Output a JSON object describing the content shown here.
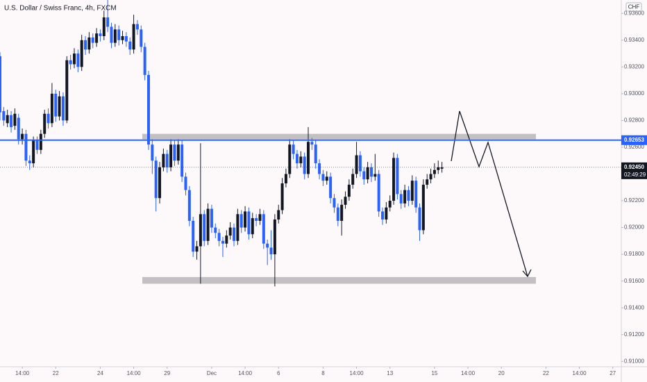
{
  "chart_data": {
    "type": "candlestick",
    "title": "U.S. Dollar / Swiss Franc, 4h, FXCM",
    "currency": "CHF",
    "up_color": "#131722",
    "down_color": "#2962ff",
    "grid": false,
    "ylim": [
      0.9096,
      0.937
    ],
    "yticks": [
      {
        "value": 0.936,
        "label": "0.93600"
      },
      {
        "value": 0.934,
        "label": "0.93400"
      },
      {
        "value": 0.932,
        "label": "0.93200"
      },
      {
        "value": 0.93,
        "label": "0.93000"
      },
      {
        "value": 0.928,
        "label": "0.92800"
      },
      {
        "value": 0.926,
        "label": "0.92600"
      },
      {
        "value": 0.922,
        "label": "0.92200"
      },
      {
        "value": 0.92,
        "label": "0.92000"
      },
      {
        "value": 0.918,
        "label": "0.91800"
      },
      {
        "value": 0.916,
        "label": "0.91600"
      },
      {
        "value": 0.914,
        "label": "0.91400"
      },
      {
        "value": 0.912,
        "label": "0.91200"
      },
      {
        "value": 0.91,
        "label": "0.91000"
      }
    ],
    "xlim": [
      0,
      167.3
    ],
    "xticks": [
      {
        "value": 6,
        "label": "14:00"
      },
      {
        "value": 15,
        "label": "22"
      },
      {
        "value": 27,
        "label": "24"
      },
      {
        "value": 36,
        "label": "14:00"
      },
      {
        "value": 45,
        "label": "29"
      },
      {
        "value": 57,
        "label": "Dec"
      },
      {
        "value": 66,
        "label": "14:00"
      },
      {
        "value": 75,
        "label": "6"
      },
      {
        "value": 87,
        "label": "8"
      },
      {
        "value": 96,
        "label": "14:00"
      },
      {
        "value": 105,
        "label": "13"
      },
      {
        "value": 117,
        "label": "15"
      },
      {
        "value": 126,
        "label": "14:00"
      },
      {
        "value": 135,
        "label": "20"
      },
      {
        "value": 147,
        "label": "22"
      },
      {
        "value": 156,
        "label": "14:00"
      },
      {
        "value": 165,
        "label": "27"
      }
    ],
    "zones": [
      {
        "low": 0.9266,
        "high": 0.927
      },
      {
        "low": 0.9158,
        "high": 0.9163
      }
    ],
    "price_line": {
      "value": 0.92653,
      "color": "#2962ff"
    },
    "last_price": {
      "value": 0.9245,
      "label": "0.92450"
    },
    "countdown": "02:49:29",
    "ohlc": [
      [
        0.9328,
        0.9331,
        0.928,
        0.9286
      ],
      [
        0.9287,
        0.929,
        0.9276,
        0.928
      ],
      [
        0.9278,
        0.9288,
        0.9275,
        0.9284
      ],
      [
        0.9284,
        0.9287,
        0.9271,
        0.9275
      ],
      [
        0.9276,
        0.9289,
        0.9273,
        0.9285
      ],
      [
        0.9282,
        0.9285,
        0.9262,
        0.9266
      ],
      [
        0.9266,
        0.9274,
        0.9262,
        0.927
      ],
      [
        0.927,
        0.9273,
        0.9246,
        0.925
      ],
      [
        0.925,
        0.9254,
        0.9243,
        0.9248
      ],
      [
        0.9248,
        0.9268,
        0.9245,
        0.9265
      ],
      [
        0.9265,
        0.9268,
        0.9255,
        0.9258
      ],
      [
        0.9258,
        0.9273,
        0.9255,
        0.927
      ],
      [
        0.927,
        0.9288,
        0.9267,
        0.9285
      ],
      [
        0.9285,
        0.9289,
        0.9274,
        0.9278
      ],
      [
        0.9278,
        0.9308,
        0.9275,
        0.93
      ],
      [
        0.93,
        0.9303,
        0.9279,
        0.9283
      ],
      [
        0.9283,
        0.9302,
        0.928,
        0.9298
      ],
      [
        0.9298,
        0.9301,
        0.9276,
        0.928
      ],
      [
        0.928,
        0.9328,
        0.9278,
        0.9325
      ],
      [
        0.9325,
        0.9329,
        0.9318,
        0.9322
      ],
      [
        0.9322,
        0.9334,
        0.9319,
        0.933
      ],
      [
        0.933,
        0.9333,
        0.9316,
        0.932
      ],
      [
        0.932,
        0.9344,
        0.9317,
        0.934
      ],
      [
        0.934,
        0.9343,
        0.9329,
        0.9333
      ],
      [
        0.9333,
        0.9346,
        0.933,
        0.9342
      ],
      [
        0.9342,
        0.9345,
        0.9334,
        0.9338
      ],
      [
        0.9338,
        0.9349,
        0.9335,
        0.9345
      ],
      [
        0.9345,
        0.9348,
        0.9339,
        0.9343
      ],
      [
        0.9343,
        0.9362,
        0.934,
        0.9357
      ],
      [
        0.9357,
        0.937,
        0.9346,
        0.935
      ],
      [
        0.935,
        0.9353,
        0.9334,
        0.9338
      ],
      [
        0.9338,
        0.9352,
        0.9335,
        0.9348
      ],
      [
        0.9348,
        0.9351,
        0.9336,
        0.934
      ],
      [
        0.934,
        0.9347,
        0.9337,
        0.9343
      ],
      [
        0.9343,
        0.9346,
        0.9335,
        0.9339
      ],
      [
        0.9339,
        0.9342,
        0.9329,
        0.9333
      ],
      [
        0.9333,
        0.9359,
        0.933,
        0.9352
      ],
      [
        0.9352,
        0.9355,
        0.9344,
        0.9348
      ],
      [
        0.9348,
        0.9351,
        0.9331,
        0.9335
      ],
      [
        0.9335,
        0.9338,
        0.931,
        0.9314
      ],
      [
        0.9314,
        0.9317,
        0.9258,
        0.9262
      ],
      [
        0.9262,
        0.9266,
        0.924,
        0.925
      ],
      [
        0.925,
        0.9253,
        0.9212,
        0.9222
      ],
      [
        0.9222,
        0.9249,
        0.9218,
        0.9245
      ],
      [
        0.9245,
        0.9259,
        0.9242,
        0.9255
      ],
      [
        0.9255,
        0.9258,
        0.9241,
        0.9245
      ],
      [
        0.9245,
        0.9266,
        0.9242,
        0.9262
      ],
      [
        0.9262,
        0.9265,
        0.9246,
        0.925
      ],
      [
        0.925,
        0.9266,
        0.9247,
        0.9262
      ],
      [
        0.9262,
        0.9265,
        0.9234,
        0.9238
      ],
      [
        0.9238,
        0.9241,
        0.9224,
        0.9228
      ],
      [
        0.9228,
        0.9231,
        0.9201,
        0.9205
      ],
      [
        0.9205,
        0.9208,
        0.9178,
        0.9182
      ],
      [
        0.9182,
        0.919,
        0.9176,
        0.9186
      ],
      [
        0.9186,
        0.9263,
        0.9158,
        0.921
      ],
      [
        0.921,
        0.9213,
        0.9186,
        0.919
      ],
      [
        0.919,
        0.9218,
        0.9187,
        0.9214
      ],
      [
        0.9214,
        0.9217,
        0.9196,
        0.92
      ],
      [
        0.92,
        0.9203,
        0.9192,
        0.9196
      ],
      [
        0.9196,
        0.9199,
        0.9186,
        0.919
      ],
      [
        0.919,
        0.9193,
        0.9178,
        0.9188
      ],
      [
        0.9188,
        0.9198,
        0.9185,
        0.9194
      ],
      [
        0.9194,
        0.9204,
        0.9191,
        0.92
      ],
      [
        0.92,
        0.9203,
        0.9186,
        0.919
      ],
      [
        0.919,
        0.9214,
        0.9187,
        0.921
      ],
      [
        0.921,
        0.9213,
        0.9196,
        0.92
      ],
      [
        0.92,
        0.9216,
        0.9197,
        0.9212
      ],
      [
        0.9212,
        0.9215,
        0.9191,
        0.9195
      ],
      [
        0.9195,
        0.9211,
        0.9192,
        0.9207
      ],
      [
        0.9207,
        0.921,
        0.9201,
        0.9205
      ],
      [
        0.9205,
        0.9214,
        0.9202,
        0.921
      ],
      [
        0.921,
        0.9213,
        0.9184,
        0.9188
      ],
      [
        0.9188,
        0.9191,
        0.9172,
        0.9185
      ],
      [
        0.9185,
        0.9198,
        0.9176,
        0.918
      ],
      [
        0.918,
        0.921,
        0.9156,
        0.9206
      ],
      [
        0.9206,
        0.9217,
        0.9203,
        0.9213
      ],
      [
        0.9213,
        0.9237,
        0.921,
        0.9233
      ],
      [
        0.9233,
        0.9244,
        0.923,
        0.924
      ],
      [
        0.924,
        0.9266,
        0.9237,
        0.9262
      ],
      [
        0.9262,
        0.9265,
        0.9251,
        0.9255
      ],
      [
        0.9255,
        0.9258,
        0.9244,
        0.9248
      ],
      [
        0.9248,
        0.9257,
        0.9245,
        0.9253
      ],
      [
        0.9253,
        0.9256,
        0.9236,
        0.924
      ],
      [
        0.924,
        0.9275,
        0.9237,
        0.9264
      ],
      [
        0.9264,
        0.9267,
        0.9258,
        0.9262
      ],
      [
        0.9262,
        0.9265,
        0.9244,
        0.9248
      ],
      [
        0.9248,
        0.9251,
        0.9236,
        0.924
      ],
      [
        0.924,
        0.9243,
        0.9231,
        0.9235
      ],
      [
        0.9235,
        0.9242,
        0.9232,
        0.9238
      ],
      [
        0.9238,
        0.9241,
        0.9218,
        0.9222
      ],
      [
        0.9222,
        0.9225,
        0.9211,
        0.9215
      ],
      [
        0.9215,
        0.9218,
        0.9201,
        0.9205
      ],
      [
        0.9205,
        0.9221,
        0.9194,
        0.9217
      ],
      [
        0.9217,
        0.9227,
        0.9214,
        0.9223
      ],
      [
        0.9223,
        0.9236,
        0.922,
        0.9232
      ],
      [
        0.9232,
        0.9244,
        0.9229,
        0.924
      ],
      [
        0.924,
        0.9264,
        0.9237,
        0.9254
      ],
      [
        0.9254,
        0.9257,
        0.9238,
        0.9242
      ],
      [
        0.9242,
        0.9245,
        0.9232,
        0.9236
      ],
      [
        0.9236,
        0.9249,
        0.9233,
        0.9245
      ],
      [
        0.9245,
        0.9248,
        0.9234,
        0.9238
      ],
      [
        0.9238,
        0.9255,
        0.9235,
        0.924
      ],
      [
        0.924,
        0.9243,
        0.9208,
        0.9212
      ],
      [
        0.9212,
        0.9215,
        0.9202,
        0.9206
      ],
      [
        0.9206,
        0.9219,
        0.9203,
        0.9215
      ],
      [
        0.9215,
        0.9224,
        0.9212,
        0.922
      ],
      [
        0.922,
        0.9256,
        0.9217,
        0.9252
      ],
      [
        0.9252,
        0.9255,
        0.9221,
        0.9225
      ],
      [
        0.9225,
        0.9228,
        0.9214,
        0.9218
      ],
      [
        0.9218,
        0.9232,
        0.9215,
        0.9228
      ],
      [
        0.9228,
        0.9231,
        0.9216,
        0.922
      ],
      [
        0.922,
        0.9239,
        0.9217,
        0.9235
      ],
      [
        0.9235,
        0.9238,
        0.9211,
        0.9215
      ],
      [
        0.9215,
        0.9218,
        0.919,
        0.9198
      ],
      [
        0.9198,
        0.9236,
        0.9195,
        0.9232
      ],
      [
        0.9232,
        0.924,
        0.9229,
        0.9236
      ],
      [
        0.9236,
        0.9244,
        0.9233,
        0.924
      ],
      [
        0.924,
        0.9248,
        0.9237,
        0.9243
      ],
      [
        0.9243,
        0.925,
        0.924,
        0.9245
      ],
      [
        0.9244,
        0.9249,
        0.9241,
        0.9245
      ]
    ]
  }
}
